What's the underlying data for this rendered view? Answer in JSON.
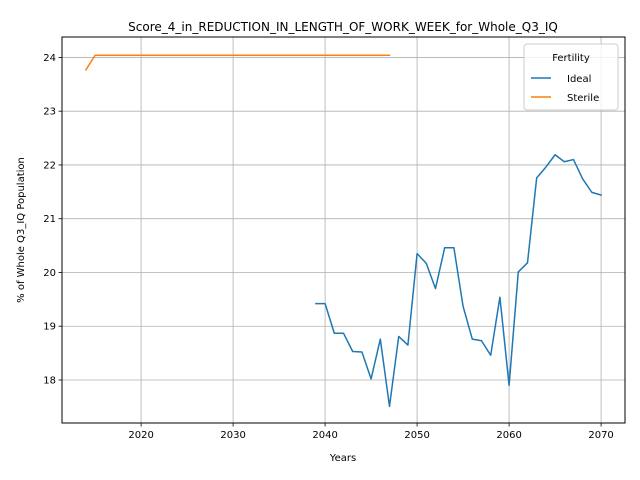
{
  "chart_data": {
    "type": "line",
    "title": "Score_4_in_REDUCTION_IN_LENGTH_OF_WORK_WEEK_for_Whole_Q3_IQ",
    "xlabel": "Years",
    "ylabel": "% of Whole Q3_IQ Population",
    "xlim": [
      2011.4,
      2072.6
    ],
    "ylim": [
      17.2,
      24.38
    ],
    "x_ticks": [
      2020,
      2030,
      2040,
      2050,
      2060,
      2070
    ],
    "y_ticks": [
      18,
      19,
      20,
      21,
      22,
      23,
      24
    ],
    "grid": true,
    "legend": {
      "title": "Fertility",
      "placement": "top-right"
    },
    "series": [
      {
        "name": "Ideal",
        "color": "#1f77b4",
        "x": [
          2039,
          2040,
          2041,
          2042,
          2043,
          2044,
          2045,
          2046,
          2047,
          2048,
          2049,
          2050,
          2051,
          2052,
          2053,
          2054,
          2055,
          2056,
          2057,
          2058,
          2059,
          2060,
          2061,
          2062,
          2063,
          2064,
          2065,
          2066,
          2067,
          2068,
          2069,
          2070
        ],
        "y": [
          19.42,
          19.42,
          18.87,
          18.87,
          18.53,
          18.52,
          18.02,
          18.76,
          17.51,
          18.81,
          18.65,
          20.35,
          20.17,
          19.7,
          20.46,
          20.46,
          19.37,
          18.76,
          18.73,
          18.46,
          19.54,
          17.9,
          20.01,
          20.18,
          21.76,
          21.96,
          22.19,
          22.06,
          22.1,
          21.74,
          21.49,
          21.44
        ]
      },
      {
        "name": "Sterile",
        "color": "#ff7f0e",
        "x": [
          2014,
          2015,
          2016,
          2017,
          2018,
          2019,
          2020,
          2021,
          2022,
          2023,
          2024,
          2025,
          2026,
          2027,
          2028,
          2029,
          2030,
          2031,
          2032,
          2033,
          2034,
          2035,
          2036,
          2037,
          2038,
          2039,
          2040,
          2041,
          2042,
          2043,
          2044,
          2045,
          2046,
          2047
        ],
        "y": [
          23.77,
          24.04,
          24.04,
          24.04,
          24.04,
          24.04,
          24.04,
          24.04,
          24.04,
          24.04,
          24.04,
          24.04,
          24.04,
          24.04,
          24.04,
          24.04,
          24.04,
          24.04,
          24.04,
          24.04,
          24.04,
          24.04,
          24.04,
          24.04,
          24.04,
          24.04,
          24.04,
          24.04,
          24.04,
          24.04,
          24.04,
          24.04,
          24.04,
          24.04
        ]
      }
    ]
  }
}
